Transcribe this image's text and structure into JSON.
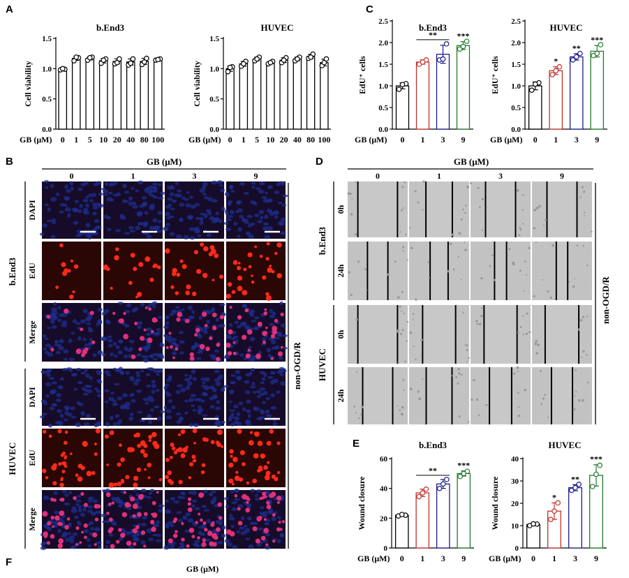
{
  "panel_letters": [
    "A",
    "B",
    "C",
    "D",
    "E",
    "F"
  ],
  "colors": {
    "c0": "#000000",
    "c1": "#c0302b",
    "c3": "#1a1a8c",
    "c9": "#1f7a2a",
    "dapi": "#1d2d8f",
    "edu": "#c41a10",
    "tissue_bg": "#3a1208",
    "wound_bg": "#b9b9b9"
  },
  "panel_B": {
    "header": "GB (μM)",
    "columns": [
      "0",
      "1",
      "3",
      "9"
    ],
    "cells": [
      {
        "name": "b.End3",
        "rows": [
          "DAPI",
          "EdU",
          "Merge"
        ]
      },
      {
        "name": "HUVEC",
        "rows": [
          "DAPI",
          "EdU",
          "Merge"
        ]
      }
    ],
    "side_label": "non-OGD/R"
  },
  "panel_D": {
    "header": "GB (μM)",
    "columns": [
      "0",
      "1",
      "3",
      "9"
    ],
    "cells": [
      {
        "name": "b.End3",
        "rows": [
          "0h",
          "24h"
        ],
        "gap_fraction": [
          [
            0.66,
            0.44,
            0.5,
            0.5
          ],
          [
            0.34,
            0.3,
            0.2,
            0.19
          ]
        ]
      },
      {
        "name": "HUVEC",
        "rows": [
          "0h",
          "24h"
        ],
        "gap_fraction": [
          [
            0.66,
            0.55,
            0.55,
            0.56
          ],
          [
            0.5,
            0.43,
            0.37,
            0.35
          ]
        ]
      }
    ],
    "side_label": "non-OGD/R"
  },
  "panel_F": {
    "xlabel": "GB (μM)"
  },
  "chart_data": [
    {
      "id": "A1",
      "type": "bar",
      "title": "b.End3",
      "ylabel": "Cell viability",
      "xlabel": "GB (μM)",
      "categories": [
        "0",
        "1",
        "5",
        "10",
        "20",
        "40",
        "80",
        "100"
      ],
      "values": [
        0.99,
        1.17,
        1.17,
        1.13,
        1.12,
        1.11,
        1.12,
        1.15
      ],
      "points": [
        [
          0.98,
          0.99,
          1.0
        ],
        [
          1.13,
          1.18,
          1.19
        ],
        [
          1.14,
          1.19,
          1.18
        ],
        [
          1.09,
          1.16,
          1.14
        ],
        [
          1.08,
          1.16,
          1.1
        ],
        [
          1.06,
          1.16,
          1.09
        ],
        [
          1.07,
          1.17,
          1.11
        ],
        [
          1.14,
          1.16,
          1.15
        ]
      ],
      "ylim": [
        0,
        1.5
      ],
      "yticks": [
        "0.0",
        "0.5",
        "1.0",
        "1.5"
      ]
    },
    {
      "id": "A2",
      "type": "bar",
      "title": "HUVEC",
      "ylabel": "Cell viability",
      "xlabel": "GB (μM)",
      "categories": [
        "0",
        "1",
        "5",
        "10",
        "20",
        "40",
        "80",
        "100"
      ],
      "values": [
        1.0,
        1.08,
        1.16,
        1.1,
        1.14,
        1.16,
        1.2,
        1.1
      ],
      "points": [
        [
          0.95,
          1.03,
          1.02
        ],
        [
          1.04,
          1.12,
          1.08
        ],
        [
          1.13,
          1.19,
          1.16
        ],
        [
          1.08,
          1.12,
          1.1
        ],
        [
          1.1,
          1.18,
          1.14
        ],
        [
          1.13,
          1.19,
          1.16
        ],
        [
          1.17,
          1.24,
          1.19
        ],
        [
          1.05,
          1.16,
          1.1
        ]
      ],
      "ylim": [
        0,
        1.5
      ],
      "yticks": [
        "0.0",
        "0.5",
        "1.0",
        "1.5"
      ]
    },
    {
      "id": "C1",
      "type": "bar",
      "title": "b.End3",
      "ylabel": "EdU⁺ cells",
      "xlabel": "GB (μM)",
      "categories": [
        "0",
        "1",
        "3",
        "9"
      ],
      "values": [
        1.0,
        1.55,
        1.73,
        1.93
      ],
      "points": [
        [
          0.92,
          1.05,
          1.03
        ],
        [
          1.5,
          1.6,
          1.55
        ],
        [
          1.6,
          1.97,
          1.62
        ],
        [
          1.85,
          2.03,
          1.91
        ]
      ],
      "ylim": [
        0,
        2.5
      ],
      "yticks": [
        "0.0",
        "0.5",
        "1.0",
        "1.5",
        "2.0",
        "2.5"
      ],
      "annotations": [
        "",
        "",
        "",
        "***"
      ],
      "bracket": {
        "from": 1,
        "to": 2,
        "label": "**"
      }
    },
    {
      "id": "C2",
      "type": "bar",
      "title": "HUVEC",
      "ylabel": "EdU⁺ cells",
      "xlabel": "GB (μM)",
      "categories": [
        "0",
        "1",
        "3",
        "9"
      ],
      "values": [
        1.0,
        1.35,
        1.67,
        1.8
      ],
      "points": [
        [
          0.9,
          1.07,
          1.04
        ],
        [
          1.26,
          1.44,
          1.35
        ],
        [
          1.6,
          1.75,
          1.67
        ],
        [
          1.7,
          1.95,
          1.75
        ]
      ],
      "ylim": [
        0,
        2.5
      ],
      "yticks": [
        "0.0",
        "0.5",
        "1.0",
        "1.5",
        "2.0",
        "2.5"
      ],
      "annotations": [
        "",
        "*",
        "**",
        "***"
      ]
    },
    {
      "id": "E1",
      "type": "bar",
      "title": "b.End3",
      "ylabel": "Wound closure",
      "xlabel": "GB (μM)",
      "categories": [
        "0",
        "1",
        "3",
        "9"
      ],
      "values": [
        22,
        37,
        43,
        50
      ],
      "points": [
        [
          21.5,
          22.0,
          22.5
        ],
        [
          34.5,
          39.5,
          37.0
        ],
        [
          40.0,
          46.0,
          43.0
        ],
        [
          48.0,
          51.5,
          50.0
        ]
      ],
      "ylim": [
        0,
        60
      ],
      "yticks": [
        "0",
        "20",
        "40",
        "60"
      ],
      "annotations": [
        "",
        "",
        "",
        "***"
      ],
      "bracket": {
        "from": 1,
        "to": 2,
        "label": "**"
      }
    },
    {
      "id": "E2",
      "type": "bar",
      "title": "HUVEC",
      "ylabel": "Wound closure",
      "xlabel": "GB (μM)",
      "categories": [
        "0",
        "1",
        "3",
        "9"
      ],
      "values": [
        10.5,
        16.5,
        27,
        32.5
      ],
      "points": [
        [
          10.0,
          10.7,
          10.8
        ],
        [
          12.8,
          20.2,
          16.5
        ],
        [
          25.8,
          28.5,
          27.0
        ],
        [
          27.5,
          37.0,
          33.0
        ]
      ],
      "ylim": [
        0,
        40
      ],
      "yticks": [
        "0",
        "10",
        "20",
        "30",
        "40"
      ],
      "annotations": [
        "",
        "*",
        "**",
        "***"
      ]
    }
  ]
}
